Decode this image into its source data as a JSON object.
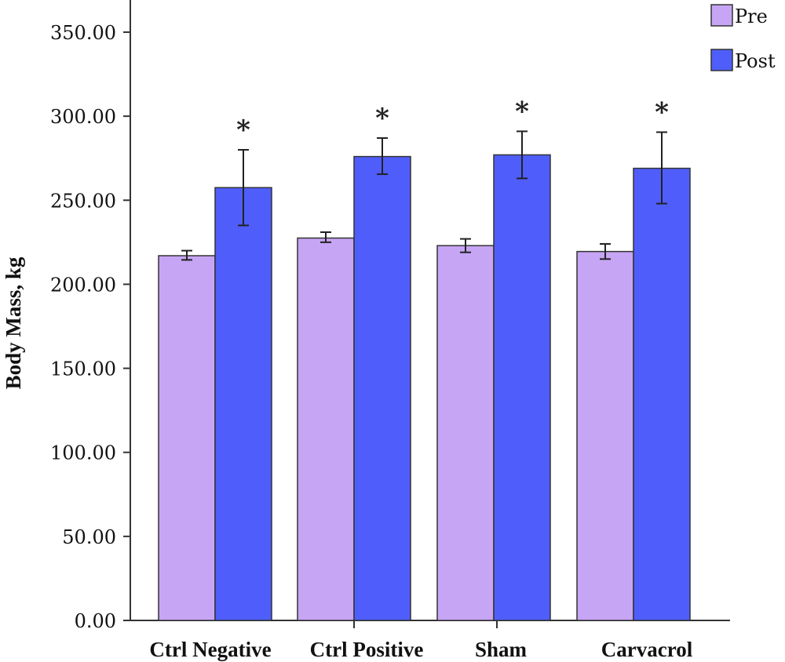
{
  "chart_data": {
    "type": "bar",
    "title": "",
    "xlabel": "",
    "ylabel": "Body Mass, kg",
    "ylim": [
      0,
      350
    ],
    "yticks": [
      "0.00",
      "50.00",
      "100.00",
      "150.00",
      "200.00",
      "250.00",
      "300.00",
      "350.00"
    ],
    "categories": [
      "Ctrl Negative",
      "Ctrl Positive",
      "Sham",
      "Carvacrol"
    ],
    "series": [
      {
        "name": "Pre",
        "color": "#c7a5f5",
        "values": [
          217,
          227.5,
          223,
          219.5
        ],
        "err_low": [
          214.5,
          225,
          219,
          215
        ],
        "err_high": [
          220,
          231,
          227,
          224
        ]
      },
      {
        "name": "Post",
        "color": "#4f5efa",
        "values": [
          257.5,
          276,
          277,
          269
        ],
        "err_low": [
          235,
          265.5,
          263,
          248
        ],
        "err_high": [
          280,
          287,
          291,
          290.5
        ]
      }
    ],
    "annotations": [
      "*",
      "*",
      "*",
      "*"
    ],
    "legend": {
      "position": "top-right",
      "entries": [
        "Pre",
        "Post"
      ]
    },
    "grid": false
  }
}
